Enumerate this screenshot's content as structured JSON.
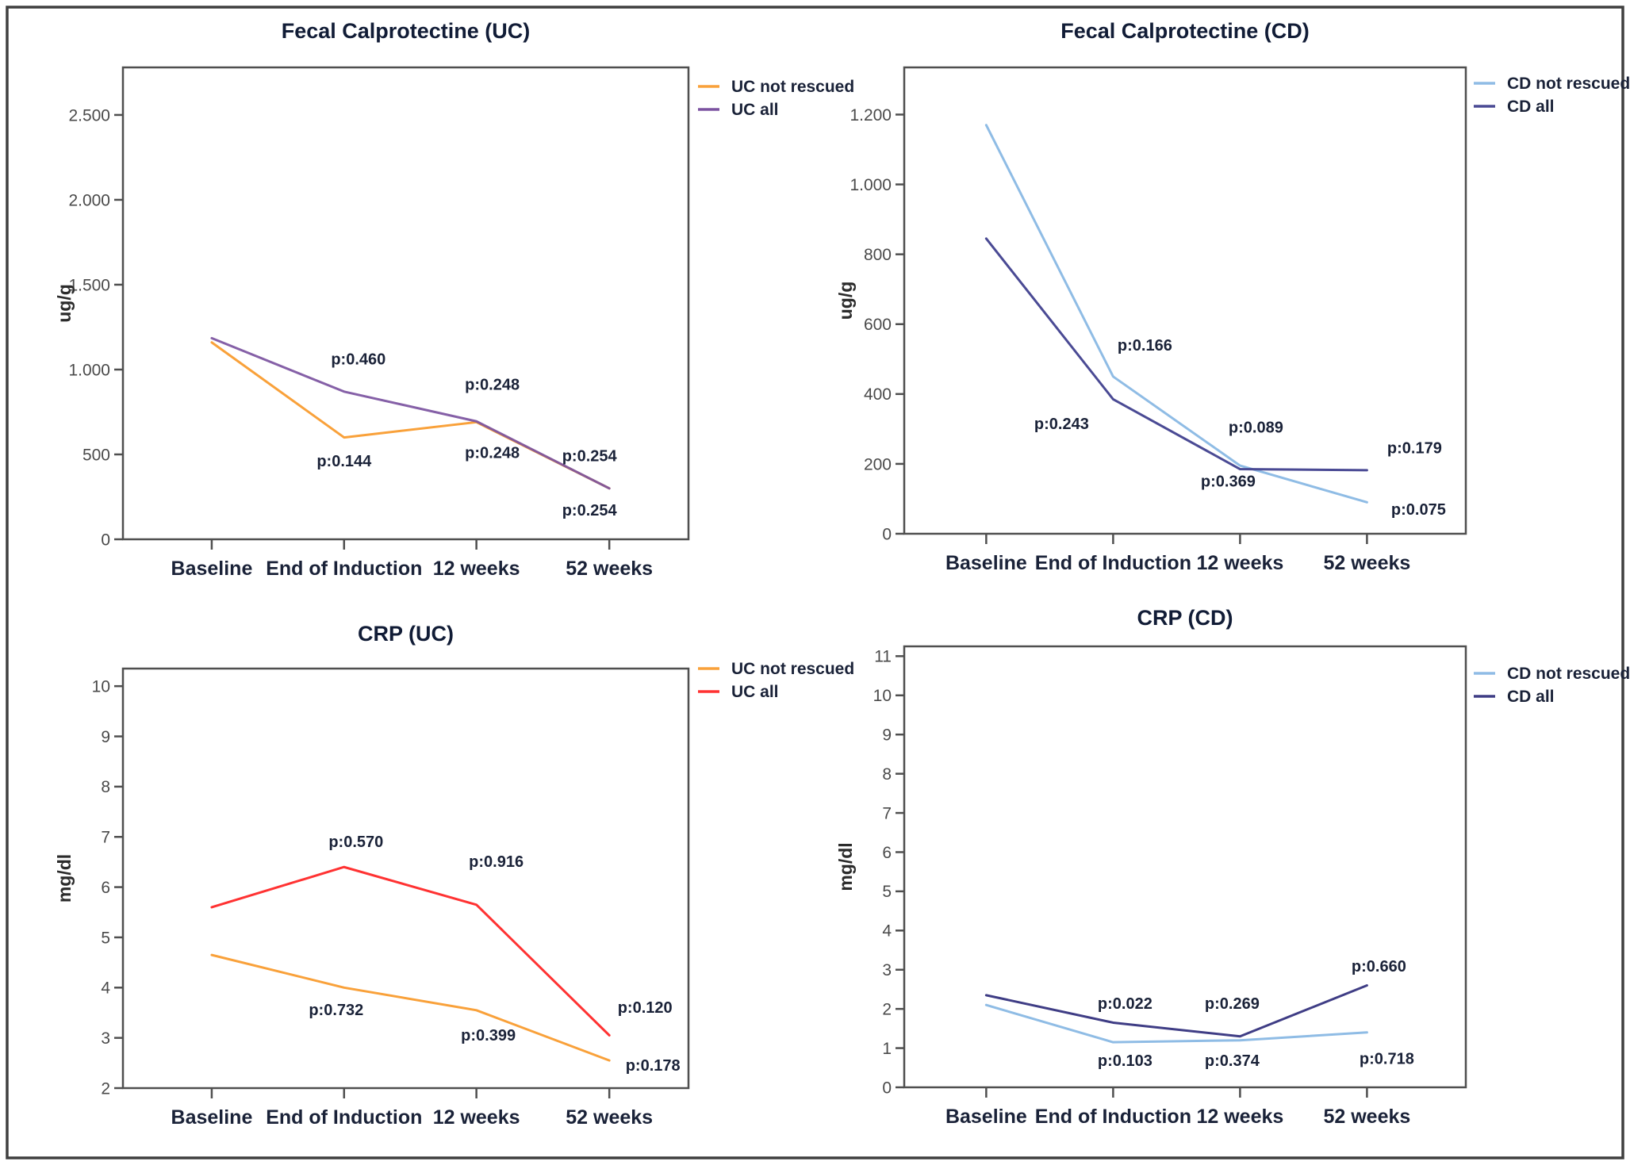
{
  "figure": {
    "background": "#FFFFFF",
    "outer_border_color": "#3F3F3F",
    "axis_color": "#4F4F4F",
    "tick_label_color": "#4A4A4A",
    "title_color": "#111C36",
    "annotation_color": "#1A2238",
    "unit_label_color": "#2B2B2B"
  },
  "x_categories": [
    "Baseline",
    "End of Induction",
    "12 weeks",
    "52 weeks"
  ],
  "chart_data": [
    {
      "id": "fecal-calprotectine-uc",
      "type": "line",
      "title": "Fecal Calprotectine (UC)",
      "ylabel": "ug/g",
      "categories": [
        "Baseline",
        "End of Induction",
        "12 weeks",
        "52 weeks"
      ],
      "ylim": [
        0,
        2780
      ],
      "y_ticks": [
        {
          "value": 0,
          "label": "0"
        },
        {
          "value": 500,
          "label": "500"
        },
        {
          "value": 1000,
          "label": "1.000"
        },
        {
          "value": 1500,
          "label": "1.500"
        },
        {
          "value": 2000,
          "label": "2.000"
        },
        {
          "value": 2500,
          "label": "2.500"
        }
      ],
      "series": [
        {
          "name": "UC not rescued",
          "color": "#F9A13A",
          "values": [
            1160,
            600,
            690,
            300
          ]
        },
        {
          "name": "UC all",
          "color": "#7B52A0",
          "opacity": 0.92,
          "values": [
            1185,
            870,
            695,
            300
          ]
        }
      ],
      "legend_position": "top-right-outside",
      "grid": false,
      "p_annotations": [
        {
          "label": "p:0.460",
          "x_index": 1,
          "value": 1030,
          "dx": 18
        },
        {
          "label": "p:0.144",
          "x_index": 1,
          "value": 430,
          "dx": 0
        },
        {
          "label": "p:0.248",
          "x_index": 2,
          "value": 880,
          "dx": 20
        },
        {
          "label": "p:0.248",
          "x_index": 2,
          "value": 480,
          "dx": 20
        },
        {
          "label": "p:0.254",
          "x_index": 3,
          "value": 460,
          "dx": -25
        },
        {
          "label": "p:0.254",
          "x_index": 3,
          "value": 140,
          "dx": -25
        }
      ]
    },
    {
      "id": "fecal-calprotectine-cd",
      "type": "line",
      "title": "Fecal Calprotectine (CD)",
      "ylabel": "ug/g",
      "categories": [
        "Baseline",
        "End of Induction",
        "12 weeks",
        "52 weeks"
      ],
      "ylim": [
        0,
        1335
      ],
      "y_ticks": [
        {
          "value": 0,
          "label": "0"
        },
        {
          "value": 200,
          "label": "200"
        },
        {
          "value": 400,
          "label": "400"
        },
        {
          "value": 600,
          "label": "600"
        },
        {
          "value": 800,
          "label": "800"
        },
        {
          "value": 1000,
          "label": "1.000"
        },
        {
          "value": 1200,
          "label": "1.200"
        }
      ],
      "series": [
        {
          "name": "CD not rescued",
          "color": "#8FBCE5",
          "values": [
            1170,
            450,
            195,
            90
          ]
        },
        {
          "name": "CD all",
          "color": "#4A4A94",
          "values": [
            845,
            385,
            185,
            182
          ]
        }
      ],
      "legend_position": "top-right-outside",
      "grid": false,
      "p_annotations": [
        {
          "label": "p:0.166",
          "x_index": 1,
          "value": 525,
          "dx": 40
        },
        {
          "label": "p:0.243",
          "x_index": 1,
          "value": 300,
          "dx": -65
        },
        {
          "label": "p:0.089",
          "x_index": 2,
          "value": 290,
          "dx": 20
        },
        {
          "label": "p:0.369",
          "x_index": 2,
          "value": 135,
          "dx": -15
        },
        {
          "label": "p:0.179",
          "x_index": 3,
          "value": 230,
          "dx": 60
        },
        {
          "label": "p:0.075",
          "x_index": 3,
          "value": 55,
          "dx": 65
        }
      ]
    },
    {
      "id": "crp-uc",
      "type": "line",
      "title": "CRP (UC)",
      "ylabel": "mg/dl",
      "categories": [
        "Baseline",
        "End of Induction",
        "12 weeks",
        "52 weeks"
      ],
      "ylim": [
        2,
        10.35
      ],
      "y_ticks": [
        {
          "value": 2,
          "label": "2"
        },
        {
          "value": 3,
          "label": "3"
        },
        {
          "value": 4,
          "label": "4"
        },
        {
          "value": 5,
          "label": "5"
        },
        {
          "value": 6,
          "label": "6"
        },
        {
          "value": 7,
          "label": "7"
        },
        {
          "value": 8,
          "label": "8"
        },
        {
          "value": 9,
          "label": "9"
        },
        {
          "value": 10,
          "label": "10"
        }
      ],
      "series": [
        {
          "name": "UC not rescued",
          "color": "#F9A13A",
          "values": [
            4.65,
            4.0,
            3.55,
            2.55
          ]
        },
        {
          "name": "UC all",
          "color": "#FF3232",
          "values": [
            5.6,
            6.4,
            5.65,
            3.05
          ]
        }
      ],
      "legend_position": "top-right-outside",
      "grid": false,
      "p_annotations": [
        {
          "label": "p:0.570",
          "x_index": 1,
          "value": 6.8,
          "dx": 15
        },
        {
          "label": "p:0.732",
          "x_index": 1,
          "value": 3.45,
          "dx": -10
        },
        {
          "label": "p:0.916",
          "x_index": 2,
          "value": 6.4,
          "dx": 25
        },
        {
          "label": "p:0.399",
          "x_index": 2,
          "value": 2.95,
          "dx": 15
        },
        {
          "label": "p:0.120",
          "x_index": 3,
          "value": 3.5,
          "dx": 45
        },
        {
          "label": "p:0.178",
          "x_index": 3,
          "value": 2.35,
          "dx": 55
        }
      ]
    },
    {
      "id": "crp-cd",
      "type": "line",
      "title": "CRP (CD)",
      "ylabel": "mg/dl",
      "categories": [
        "Baseline",
        "End of Induction",
        "12 weeks",
        "52 weeks"
      ],
      "ylim": [
        0,
        11.25
      ],
      "y_ticks": [
        {
          "value": 0,
          "label": "0"
        },
        {
          "value": 1,
          "label": "1"
        },
        {
          "value": 2,
          "label": "2"
        },
        {
          "value": 3,
          "label": "3"
        },
        {
          "value": 4,
          "label": "4"
        },
        {
          "value": 5,
          "label": "5"
        },
        {
          "value": 6,
          "label": "6"
        },
        {
          "value": 7,
          "label": "7"
        },
        {
          "value": 8,
          "label": "8"
        },
        {
          "value": 9,
          "label": "9"
        },
        {
          "value": 10,
          "label": "10"
        },
        {
          "value": 11,
          "label": "11"
        }
      ],
      "series": [
        {
          "name": "CD not rescued",
          "color": "#8FBCE5",
          "values": [
            2.1,
            1.15,
            1.2,
            1.4
          ]
        },
        {
          "name": "CD all",
          "color": "#3F3D85",
          "values": [
            2.35,
            1.65,
            1.3,
            2.6
          ]
        }
      ],
      "legend_position": "top-right-outside",
      "grid": false,
      "p_annotations": [
        {
          "label": "p:0.022",
          "x_index": 1,
          "value": 2.0,
          "dx": 15
        },
        {
          "label": "p:0.103",
          "x_index": 1,
          "value": 0.55,
          "dx": 15
        },
        {
          "label": "p:0.269",
          "x_index": 2,
          "value": 2.0,
          "dx": -10
        },
        {
          "label": "p:0.374",
          "x_index": 2,
          "value": 0.55,
          "dx": -10
        },
        {
          "label": "p:0.660",
          "x_index": 3,
          "value": 2.95,
          "dx": 15
        },
        {
          "label": "p:0.718",
          "x_index": 3,
          "value": 0.6,
          "dx": 25
        }
      ]
    }
  ]
}
